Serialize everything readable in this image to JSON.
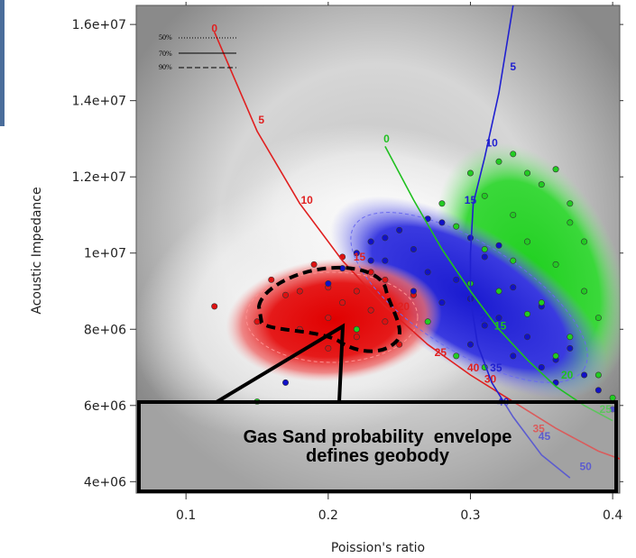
{
  "chart_data": {
    "type": "scatter",
    "title": "",
    "xlabel": "Poission's ratio",
    "ylabel": "Acoustic Impedance",
    "xlim": [
      0.065,
      0.405
    ],
    "ylim": [
      3700000,
      16500000
    ],
    "x_ticks": [
      0.1,
      0.2,
      0.3,
      0.4
    ],
    "x_tick_labels": [
      "0.1",
      "0.2",
      "0.3",
      "0.4"
    ],
    "y_ticks": [
      4000000,
      6000000,
      8000000,
      10000000,
      12000000,
      14000000,
      16000000
    ],
    "y_tick_labels": [
      "4e+06",
      "6e+06",
      "8e+06",
      "1e+07",
      "1.2e+07",
      "1.4e+07",
      "1.6e+07"
    ],
    "grid": false,
    "legend_position": "top-left",
    "legend": [
      {
        "label": "50%",
        "style": "dotted"
      },
      {
        "label": "70%",
        "style": "solid"
      },
      {
        "label": "90%",
        "style": "dashed"
      }
    ],
    "series": [
      {
        "name": "",
        "color": "#dd1111",
        "points": [
          [
            0.12,
            8600000
          ],
          [
            0.15,
            8200000
          ],
          [
            0.16,
            9300000
          ],
          [
            0.17,
            8900000
          ],
          [
            0.18,
            8000000
          ],
          [
            0.19,
            9700000
          ],
          [
            0.2,
            9100000
          ],
          [
            0.2,
            8300000
          ],
          [
            0.21,
            8700000
          ],
          [
            0.22,
            9000000
          ],
          [
            0.22,
            7800000
          ],
          [
            0.23,
            8500000
          ],
          [
            0.23,
            9500000
          ],
          [
            0.24,
            8200000
          ],
          [
            0.25,
            7600000
          ],
          [
            0.21,
            9900000
          ],
          [
            0.18,
            9000000
          ],
          [
            0.26,
            8900000
          ],
          [
            0.2,
            7500000
          ],
          [
            0.24,
            9300000
          ]
        ]
      },
      {
        "name": "",
        "color": "#1010c8",
        "points": [
          [
            0.2,
            9200000
          ],
          [
            0.21,
            9600000
          ],
          [
            0.22,
            10000000
          ],
          [
            0.23,
            10300000
          ],
          [
            0.24,
            9800000
          ],
          [
            0.25,
            10600000
          ],
          [
            0.26,
            10100000
          ],
          [
            0.27,
            9500000
          ],
          [
            0.28,
            10800000
          ],
          [
            0.29,
            9300000
          ],
          [
            0.3,
            8800000
          ],
          [
            0.31,
            9900000
          ],
          [
            0.32,
            8300000
          ],
          [
            0.33,
            9100000
          ],
          [
            0.34,
            7800000
          ],
          [
            0.35,
            8600000
          ],
          [
            0.36,
            7200000
          ],
          [
            0.37,
            7500000
          ],
          [
            0.38,
            6800000
          ],
          [
            0.39,
            6400000
          ],
          [
            0.4,
            5900000
          ],
          [
            0.3,
            10400000
          ],
          [
            0.28,
            8700000
          ],
          [
            0.26,
            9000000
          ],
          [
            0.33,
            7300000
          ],
          [
            0.36,
            6600000
          ],
          [
            0.24,
            10400000
          ],
          [
            0.3,
            7600000
          ],
          [
            0.17,
            6600000
          ],
          [
            0.23,
            9800000
          ],
          [
            0.32,
            10200000
          ],
          [
            0.35,
            7000000
          ],
          [
            0.27,
            10900000
          ],
          [
            0.31,
            8100000
          ]
        ]
      },
      {
        "name": "",
        "color": "#22cc22",
        "points": [
          [
            0.28,
            11300000
          ],
          [
            0.29,
            10700000
          ],
          [
            0.3,
            12100000
          ],
          [
            0.31,
            11500000
          ],
          [
            0.32,
            12400000
          ],
          [
            0.33,
            11000000
          ],
          [
            0.34,
            10300000
          ],
          [
            0.35,
            11800000
          ],
          [
            0.36,
            9700000
          ],
          [
            0.37,
            10800000
          ],
          [
            0.38,
            9000000
          ],
          [
            0.39,
            8300000
          ],
          [
            0.34,
            12100000
          ],
          [
            0.36,
            12200000
          ],
          [
            0.33,
            9800000
          ],
          [
            0.35,
            8700000
          ],
          [
            0.37,
            7800000
          ],
          [
            0.39,
            6800000
          ],
          [
            0.4,
            6200000
          ],
          [
            0.31,
            10100000
          ],
          [
            0.3,
            9200000
          ],
          [
            0.38,
            10300000
          ],
          [
            0.32,
            9000000
          ],
          [
            0.36,
            7300000
          ],
          [
            0.34,
            8400000
          ],
          [
            0.27,
            8200000
          ],
          [
            0.29,
            7300000
          ],
          [
            0.15,
            6100000
          ],
          [
            0.22,
            8000000
          ],
          [
            0.31,
            7000000
          ],
          [
            0.37,
            11300000
          ],
          [
            0.33,
            12600000
          ]
        ]
      }
    ],
    "rock_physics_curves": [
      {
        "color": "#e02020",
        "points": [
          [
            0.12,
            15800000
          ],
          [
            0.15,
            13200000
          ],
          [
            0.18,
            11300000
          ],
          [
            0.21,
            9800000
          ],
          [
            0.24,
            8600000
          ],
          [
            0.27,
            7600000
          ],
          [
            0.3,
            6800000
          ],
          [
            0.33,
            6100000
          ],
          [
            0.36,
            5400000
          ],
          [
            0.39,
            4800000
          ],
          [
            0.405,
            4600000
          ]
        ],
        "labels": [
          {
            "text": "0",
            "at": [
              0.12,
              15800000
            ]
          },
          {
            "text": "5",
            "at": [
              0.153,
              13400000
            ]
          },
          {
            "text": "10",
            "at": [
              0.185,
              11300000
            ]
          },
          {
            "text": "15",
            "at": [
              0.222,
              9800000
            ]
          },
          {
            "text": "20",
            "at": [
              0.253,
              8500000
            ]
          },
          {
            "text": "25",
            "at": [
              0.279,
              7300000
            ]
          },
          {
            "text": "30",
            "at": [
              0.314,
              6600000
            ]
          },
          {
            "text": "35",
            "at": [
              0.348,
              5300000
            ]
          },
          {
            "text": "40",
            "at": [
              0.302,
              6900000
            ]
          }
        ]
      },
      {
        "color": "#2020d0",
        "points": [
          [
            0.33,
            16500000
          ],
          [
            0.32,
            14200000
          ],
          [
            0.31,
            12500000
          ],
          [
            0.302,
            11300000
          ],
          [
            0.3,
            10000000
          ],
          [
            0.3,
            8800000
          ],
          [
            0.305,
            7600000
          ],
          [
            0.315,
            6600000
          ],
          [
            0.33,
            5700000
          ],
          [
            0.35,
            4700000
          ],
          [
            0.37,
            4100000
          ]
        ],
        "labels": [
          {
            "text": "5",
            "at": [
              0.33,
              14800000
            ]
          },
          {
            "text": "10",
            "at": [
              0.315,
              12800000
            ]
          },
          {
            "text": "15",
            "at": [
              0.3,
              11300000
            ]
          },
          {
            "text": "25",
            "at": [
              0.311,
              8200000
            ]
          },
          {
            "text": "35",
            "at": [
              0.318,
              6900000
            ]
          },
          {
            "text": "40",
            "at": [
              0.323,
              6000000
            ]
          },
          {
            "text": "45",
            "at": [
              0.352,
              5100000
            ]
          },
          {
            "text": "50",
            "at": [
              0.381,
              4300000
            ]
          }
        ]
      },
      {
        "color": "#20c020",
        "points": [
          [
            0.24,
            12800000
          ],
          [
            0.26,
            11400000
          ],
          [
            0.28,
            10100000
          ],
          [
            0.3,
            9000000
          ],
          [
            0.32,
            8000000
          ],
          [
            0.34,
            7200000
          ],
          [
            0.36,
            6500000
          ],
          [
            0.38,
            6000000
          ],
          [
            0.4,
            5600000
          ]
        ],
        "labels": [
          {
            "text": "0",
            "at": [
              0.241,
              12900000
            ]
          },
          {
            "text": "15",
            "at": [
              0.321,
              8000000
            ]
          },
          {
            "text": "20",
            "at": [
              0.368,
              6700000
            ]
          },
          {
            "text": "25",
            "at": [
              0.395,
              5800000
            ]
          }
        ]
      }
    ],
    "annotations": [
      "Gas Sand probability  envelope",
      "defines geobody"
    ]
  },
  "callout": {
    "line1": "Gas Sand probability  envelope",
    "line2": "defines geobody"
  }
}
